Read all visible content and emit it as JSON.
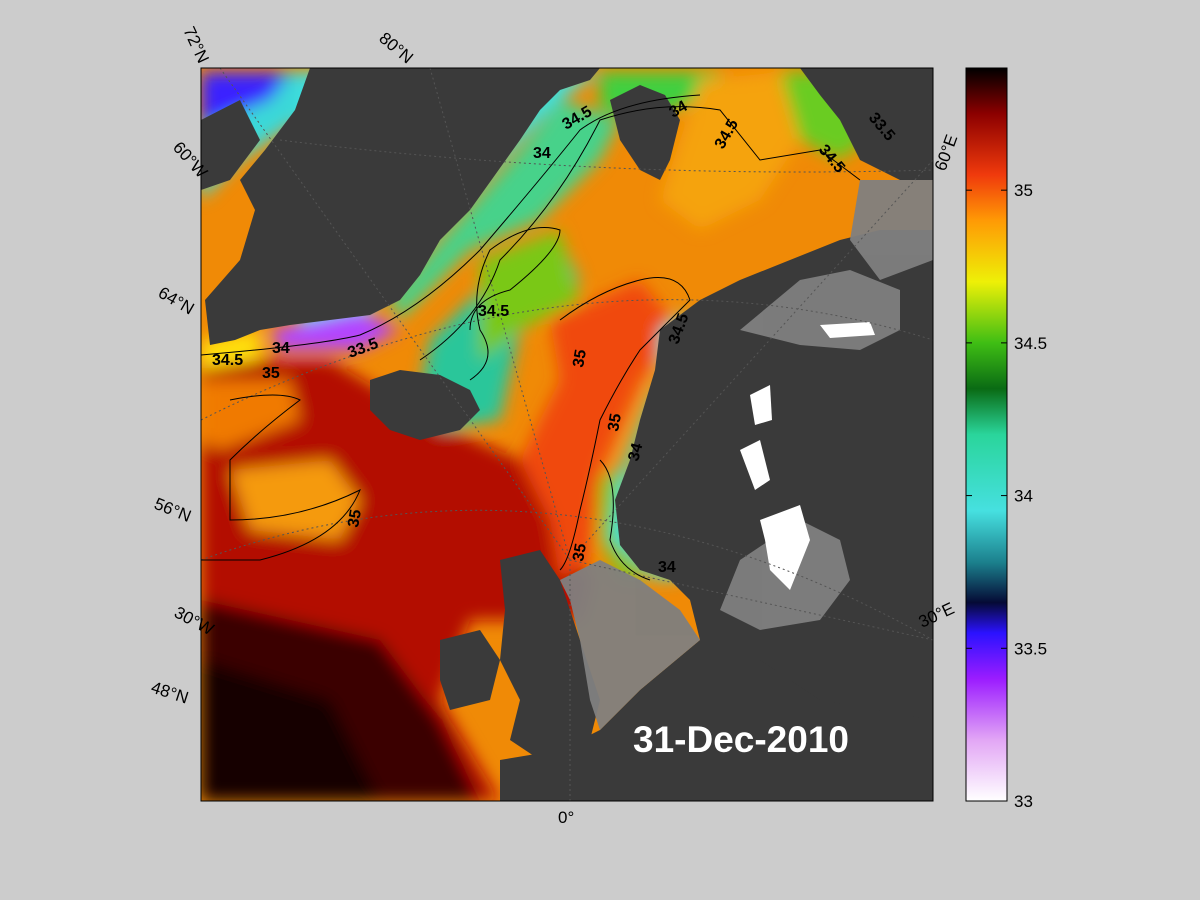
{
  "map": {
    "date": "31-Dec-2010",
    "graticule_labels": [
      "72°N",
      "80°N",
      "60°W",
      "64°N",
      "56°N",
      "30°W",
      "48°N",
      "0°",
      "30°E",
      "60°E"
    ],
    "contour_labels": [
      "34",
      "34.5",
      "34",
      "34.5",
      "34.5",
      "33.5",
      "34.5",
      "34.5",
      "34",
      "33.5",
      "35",
      "35",
      "35",
      "34.5",
      "35",
      "34",
      "35",
      "34"
    ],
    "colors": {
      "land": "#3a3a3a",
      "shelf": "#7f7f7f",
      "ice": "#ffffff",
      "background": "#cccccc"
    }
  },
  "colorbar": {
    "ticks": [
      "35",
      "34.5",
      "34",
      "33.5",
      "33"
    ],
    "range": [
      33,
      35.4
    ],
    "stops": [
      {
        "v": 33.0,
        "c": "#ffffff"
      },
      {
        "v": 33.2,
        "c": "#e2a6f5"
      },
      {
        "v": 33.4,
        "c": "#9b1cff"
      },
      {
        "v": 33.55,
        "c": "#2b12ff"
      },
      {
        "v": 33.65,
        "c": "#050a35"
      },
      {
        "v": 33.78,
        "c": "#1b7f8c"
      },
      {
        "v": 33.95,
        "c": "#46e0e0"
      },
      {
        "v": 34.2,
        "c": "#2ad59b"
      },
      {
        "v": 34.35,
        "c": "#0a6b14"
      },
      {
        "v": 34.5,
        "c": "#3fbe14"
      },
      {
        "v": 34.7,
        "c": "#eef007"
      },
      {
        "v": 34.9,
        "c": "#ff9a05"
      },
      {
        "v": 35.05,
        "c": "#f03a0c"
      },
      {
        "v": 35.25,
        "c": "#8c0000"
      },
      {
        "v": 35.4,
        "c": "#000000"
      }
    ]
  }
}
